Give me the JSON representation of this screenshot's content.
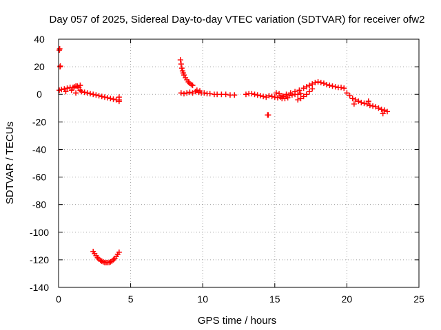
{
  "chart_data": {
    "type": "scatter",
    "title": "Day 057 of 2025, Sidereal Day-to-day VTEC variation (SDTVAR) for receiver ofw2",
    "xlabel": "GPS time / hours",
    "ylabel": "SDTVAR / TECUs",
    "xlim": [
      0,
      25
    ],
    "ylim": [
      -140,
      40
    ],
    "xticks": [
      0,
      5,
      10,
      15,
      20,
      25
    ],
    "yticks": [
      -140,
      -120,
      -100,
      -80,
      -60,
      -40,
      -20,
      0,
      20,
      40
    ],
    "grid": true,
    "marker": "plus",
    "color": "#ff0000",
    "series": [
      {
        "name": "isolated-points",
        "x": [
          0.05,
          0.08,
          0.1,
          0.12,
          14.5,
          14.55
        ],
        "y": [
          32,
          33,
          20,
          20.5,
          -15,
          -15
        ]
      },
      {
        "name": "segment-0-4h",
        "x": [
          0.05,
          0.2,
          0.4,
          0.6,
          0.8,
          1.0,
          1.1,
          1.2,
          1.3,
          1.4,
          1.5,
          1.6,
          1.8,
          2.0,
          2.2,
          2.4,
          2.6,
          2.8,
          3.0,
          3.2,
          3.4,
          3.6,
          3.8,
          4.0,
          4.2,
          4.2,
          4.2,
          0.5,
          0.9,
          1.2,
          1.5
        ],
        "y": [
          3,
          3.5,
          4,
          4.5,
          5,
          5,
          5.5,
          6,
          6,
          5,
          3,
          2,
          1.5,
          1,
          0.5,
          0,
          -0.5,
          -1,
          -1.5,
          -2,
          -2.5,
          -3,
          -3.5,
          -4,
          -4,
          -2,
          -5,
          2,
          3,
          1,
          6.5
        ]
      },
      {
        "name": "dip-segment",
        "x": [
          2.4,
          2.5,
          2.6,
          2.7,
          2.8,
          2.9,
          3.0,
          3.1,
          3.2,
          3.3,
          3.4,
          3.5,
          3.6,
          3.7,
          3.8,
          3.9,
          4.0,
          4.1,
          4.2
        ],
        "y": [
          -114,
          -115.5,
          -117,
          -118.5,
          -119.5,
          -120.5,
          -121,
          -121.5,
          -122,
          -122,
          -122,
          -122,
          -121.5,
          -121,
          -120,
          -119,
          -117.5,
          -116,
          -114.5
        ]
      },
      {
        "name": "decay-8-9h",
        "x": [
          8.45,
          8.5,
          8.55,
          8.6,
          8.65,
          8.7,
          8.8,
          8.9,
          9.0,
          9.1,
          9.2,
          9.3
        ],
        "y": [
          25,
          22,
          19,
          17,
          15.5,
          14,
          12,
          10.5,
          9,
          8,
          7,
          6.5
        ]
      },
      {
        "name": "segment-8-12h",
        "x": [
          8.5,
          8.7,
          8.9,
          9.1,
          9.3,
          9.5,
          9.7,
          9.9,
          10.1,
          10.3,
          10.5,
          10.8,
          11.0,
          11.3,
          11.6,
          11.9,
          12.2,
          9.6,
          9.8
        ],
        "y": [
          1,
          0.5,
          1,
          1.5,
          1,
          2,
          1.5,
          1,
          1,
          0.5,
          0.5,
          0,
          0,
          0,
          0,
          -0.5,
          -0.5,
          3,
          2.5
        ]
      },
      {
        "name": "segment-13-17h",
        "x": [
          13.0,
          13.2,
          13.4,
          13.6,
          13.8,
          14.0,
          14.2,
          14.4,
          14.6,
          14.8,
          15.0,
          15.2,
          15.4,
          15.6,
          15.8,
          16.0,
          16.2,
          16.4,
          16.6,
          16.8,
          15.1,
          15.3,
          15.5,
          15.7,
          15.9
        ],
        "y": [
          0,
          0.5,
          0.5,
          0,
          -0.5,
          -1,
          -1.5,
          -2,
          -1,
          -1.5,
          -2,
          -2.5,
          -2,
          -1.5,
          -1,
          -1,
          -0.5,
          0,
          0,
          0.5,
          1,
          0.5,
          -3,
          -3,
          -2.5
        ]
      },
      {
        "name": "hump-16-20h",
        "x": [
          15.5,
          15.8,
          16.1,
          16.4,
          16.7,
          17.0,
          17.2,
          17.4,
          17.6,
          17.8,
          18.0,
          18.2,
          18.4,
          18.6,
          18.8,
          19.0,
          19.2,
          19.4,
          19.6,
          19.8,
          16.6,
          16.8,
          17.0,
          17.2,
          17.4,
          17.6
        ],
        "y": [
          -1,
          0,
          1,
          2,
          3,
          4.5,
          5.5,
          6.5,
          7.5,
          8.5,
          9,
          8.5,
          8,
          7,
          6.5,
          6,
          5.5,
          5,
          5,
          4.5,
          -4,
          -3,
          -1.5,
          0,
          2,
          4
        ]
      },
      {
        "name": "segment-20-23h",
        "x": [
          20.0,
          20.2,
          20.4,
          20.6,
          20.8,
          21.0,
          21.2,
          21.4,
          21.6,
          21.8,
          22.0,
          22.2,
          22.4,
          22.6,
          22.8,
          20.5,
          21.5,
          22.5
        ],
        "y": [
          1,
          -1,
          -3,
          -4,
          -5,
          -6,
          -6.5,
          -7,
          -8,
          -8.5,
          -9,
          -10,
          -11,
          -11.5,
          -12.5,
          -7,
          -5,
          -14
        ]
      }
    ]
  }
}
